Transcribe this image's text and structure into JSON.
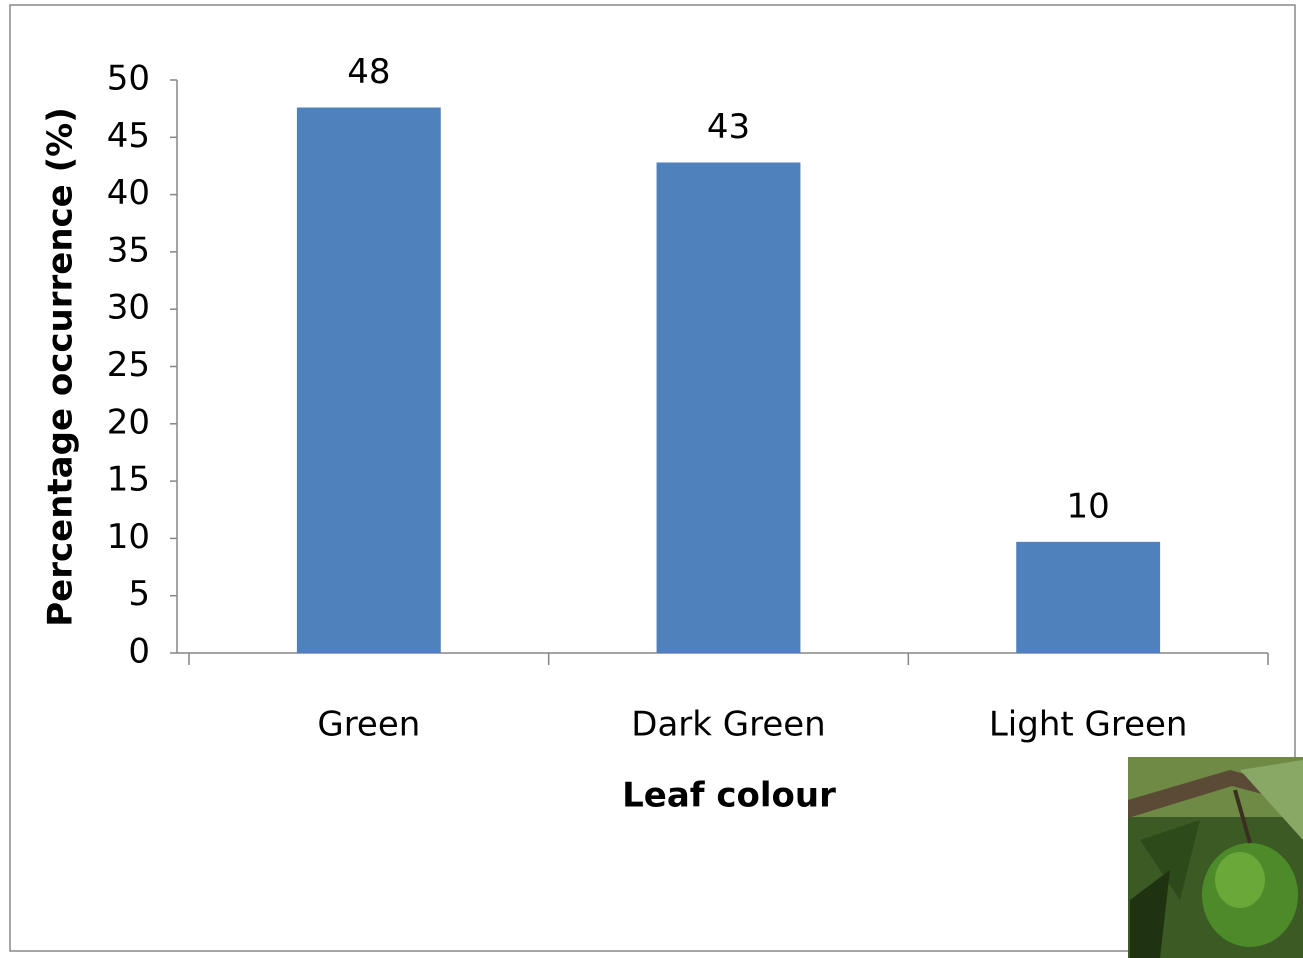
{
  "chart_data": {
    "type": "bar",
    "x_label": "Leaf colour",
    "y_label": "Percentage occurrence (%)",
    "categories": [
      "Green",
      "Dark Green",
      "Light Green"
    ],
    "values": [
      47.6,
      42.8,
      9.7
    ],
    "value_labels": [
      "48",
      "43",
      "10"
    ],
    "color": "#4f81bd",
    "ylim": [
      0,
      50
    ],
    "yticks": [
      0,
      5,
      10,
      15,
      20,
      25,
      30,
      35,
      40,
      45,
      50
    ],
    "grid": false
  }
}
